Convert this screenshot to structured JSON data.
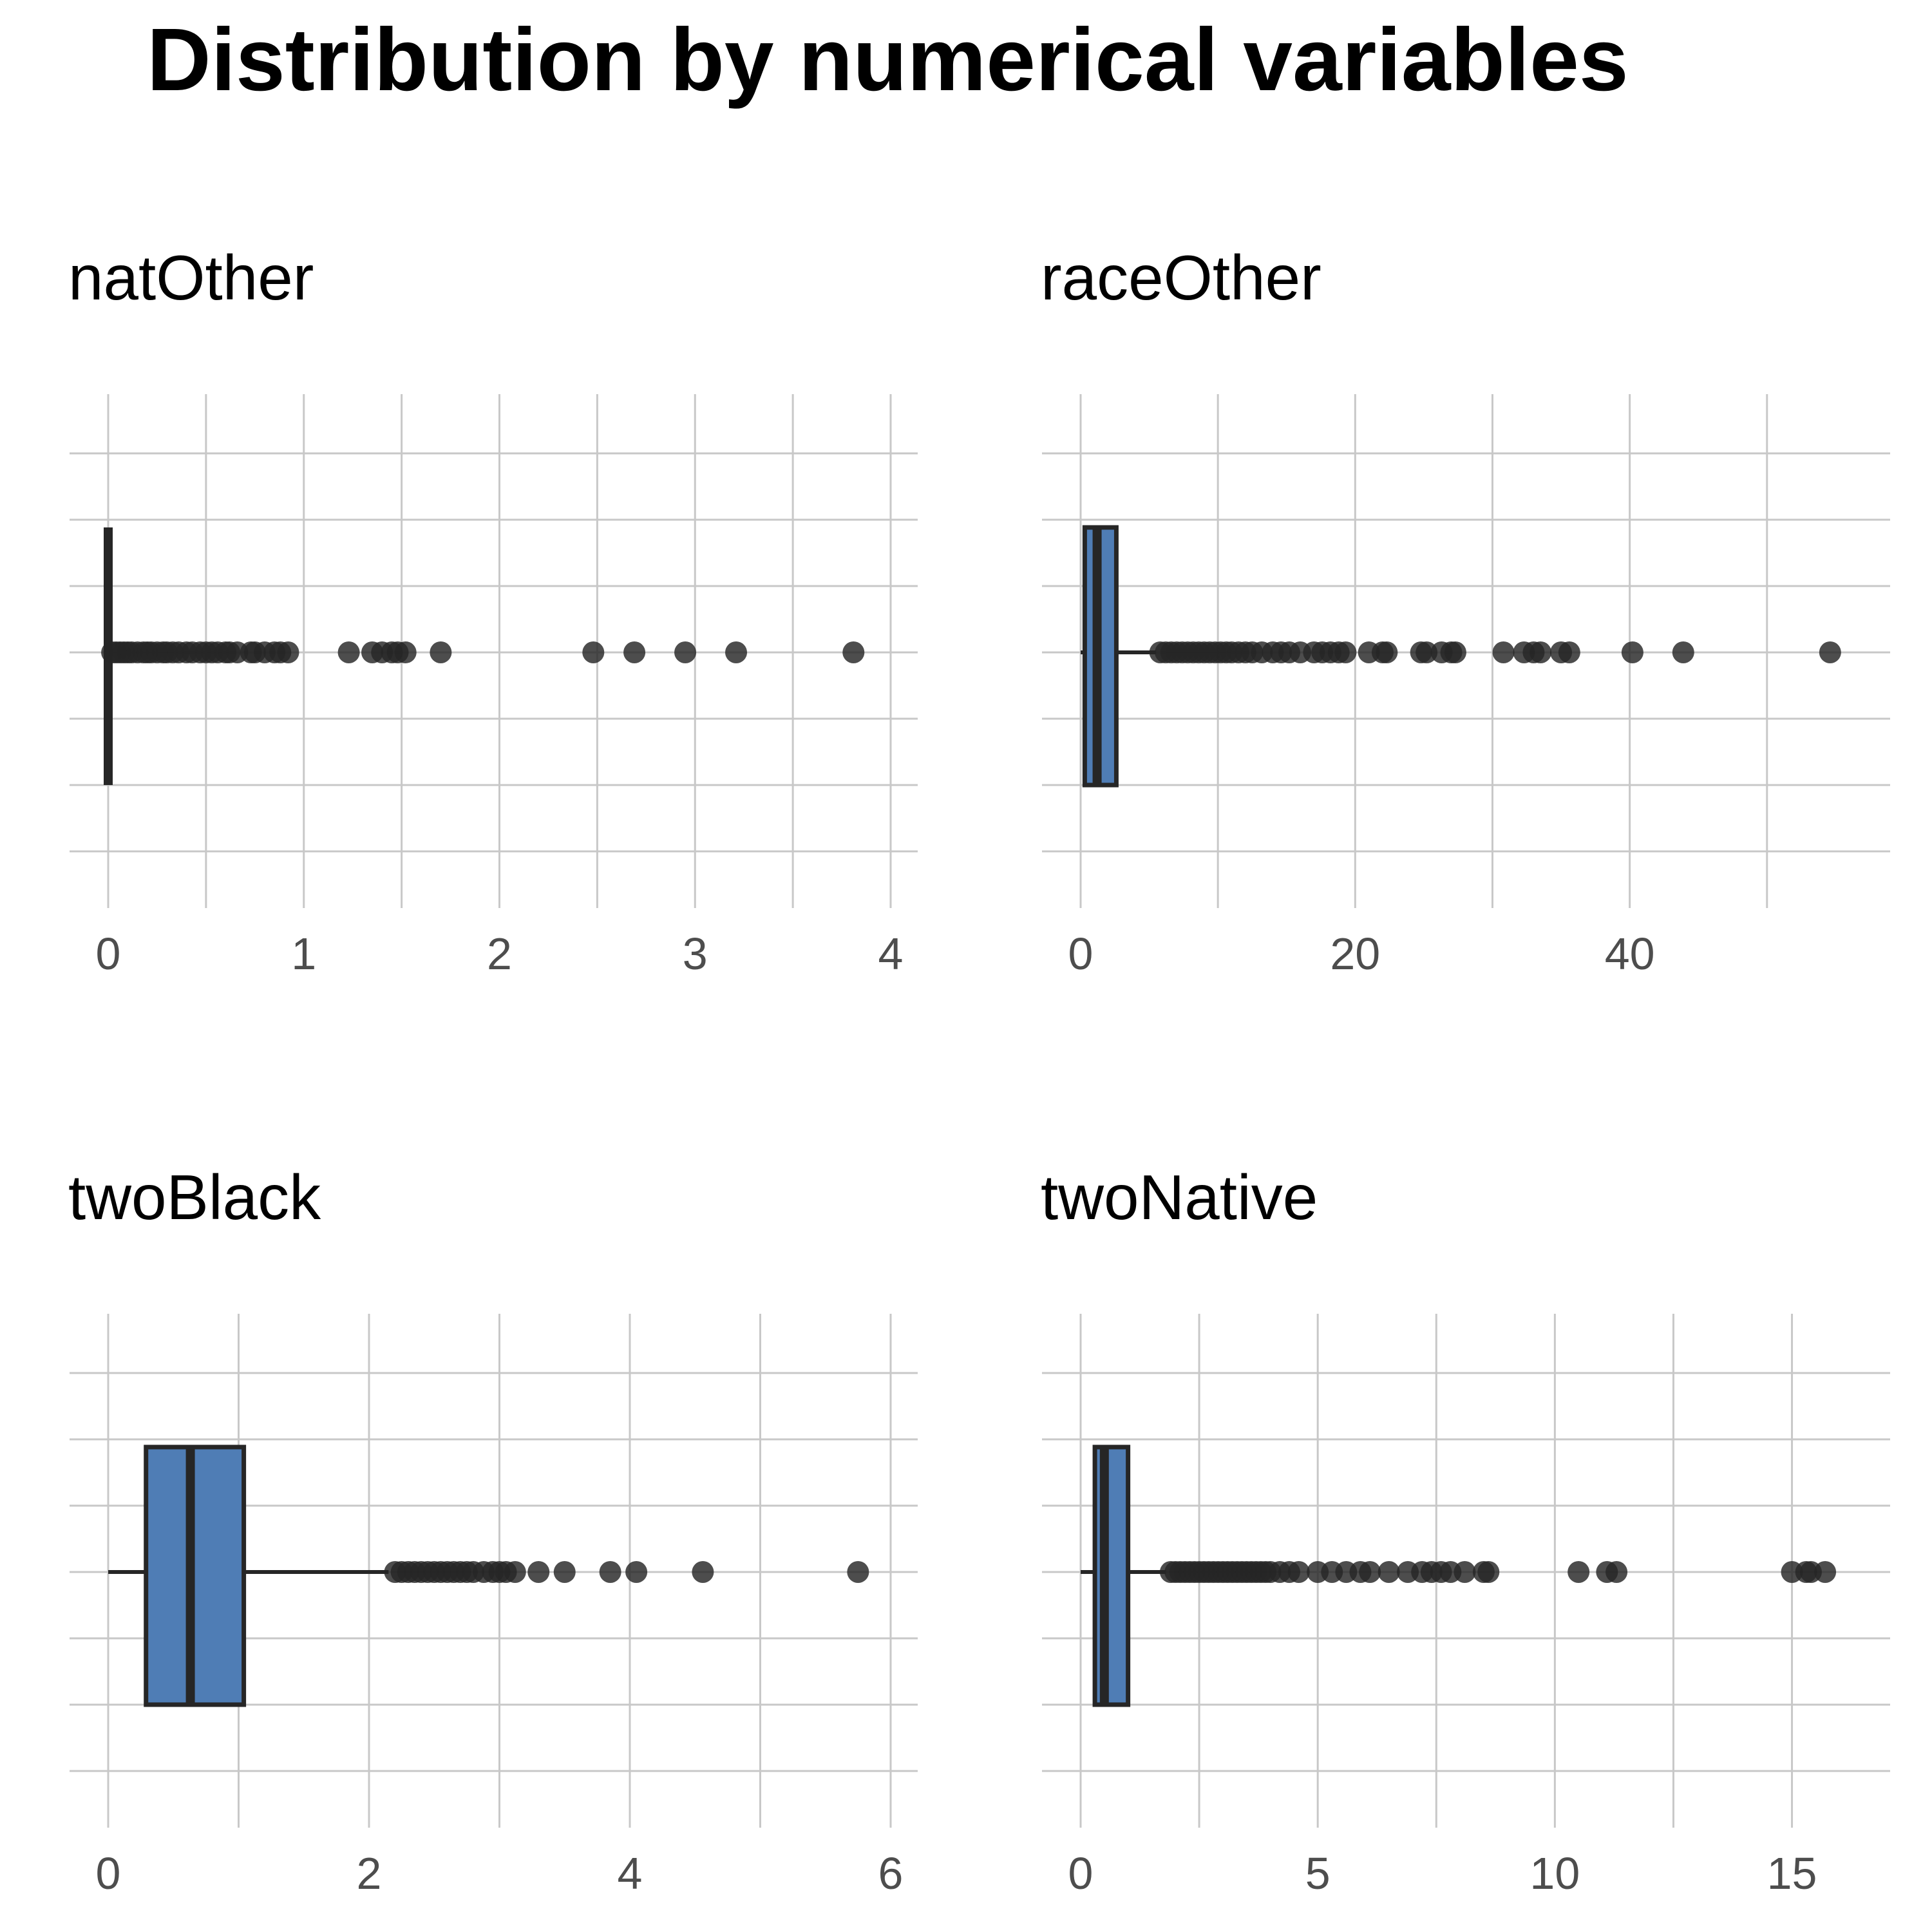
{
  "title": "Distribution by numerical variables",
  "colors": {
    "box_fill": "#4f7db5",
    "outline": "#262626",
    "grid": "#c8c8c8",
    "tick_text": "#4d4d4d"
  },
  "chart_data": [
    {
      "type": "boxplot",
      "title": "natOther",
      "xlim": [
        0,
        4
      ],
      "xticks": [
        0,
        1,
        2,
        3,
        4
      ],
      "tick_labels": [
        "0",
        "1",
        "2",
        "3",
        "4"
      ],
      "box": {
        "min": 0,
        "q1": 0,
        "median": 0,
        "q3": 0,
        "whisker_high": 0.01
      },
      "outliers": [
        0.02,
        0.04,
        0.06,
        0.08,
        0.1,
        0.12,
        0.15,
        0.18,
        0.2,
        0.22,
        0.25,
        0.28,
        0.3,
        0.33,
        0.36,
        0.4,
        0.43,
        0.47,
        0.5,
        0.53,
        0.56,
        0.6,
        0.62,
        0.66,
        0.73,
        0.75,
        0.8,
        0.85,
        0.88,
        0.92,
        1.23,
        1.35,
        1.4,
        1.45,
        1.48,
        1.52,
        1.7,
        2.48,
        2.69,
        2.95,
        3.21,
        3.81
      ]
    },
    {
      "type": "boxplot",
      "title": "raceOther",
      "xlim": [
        0,
        57
      ],
      "xticks": [
        0,
        20,
        40
      ],
      "tick_labels": [
        "0",
        "20",
        "40"
      ],
      "box": {
        "min": 0,
        "q1": 0.3,
        "median": 1.2,
        "q3": 2.6,
        "whisker_high": 5.5
      },
      "outliers": [
        5.8,
        6.2,
        6.6,
        7.0,
        7.4,
        7.8,
        8.2,
        8.6,
        9.0,
        9.4,
        9.8,
        10.2,
        10.6,
        11.0,
        11.5,
        12.0,
        12.5,
        13.2,
        14.0,
        14.6,
        15.2,
        16.0,
        17.0,
        17.6,
        18.2,
        18.8,
        19.3,
        21.0,
        22.0,
        22.3,
        24.8,
        25.2,
        26.3,
        27.0,
        27.3,
        30.8,
        32.3,
        33.0,
        33.5,
        35.0,
        35.6,
        40.2,
        43.9,
        54.6
      ]
    },
    {
      "type": "boxplot",
      "title": "twoBlack",
      "xlim": [
        0,
        6
      ],
      "xticks": [
        0,
        2,
        4,
        6
      ],
      "tick_labels": [
        "0",
        "2",
        "4",
        "6"
      ],
      "box": {
        "min": 0,
        "q1": 0.29,
        "median": 0.63,
        "q3": 1.04,
        "whisker_high": 2.15
      },
      "outliers": [
        2.2,
        2.25,
        2.3,
        2.35,
        2.4,
        2.45,
        2.5,
        2.55,
        2.6,
        2.65,
        2.7,
        2.75,
        2.8,
        2.88,
        2.95,
        3.0,
        3.05,
        3.12,
        3.3,
        3.5,
        3.85,
        4.05,
        4.56,
        5.75
      ]
    },
    {
      "type": "boxplot",
      "title": "twoNative",
      "xlim": [
        0,
        16.5
      ],
      "xticks": [
        0,
        5,
        10,
        15
      ],
      "tick_labels": [
        "0",
        "5",
        "10",
        "15"
      ],
      "box": {
        "min": 0,
        "q1": 0.3,
        "median": 0.5,
        "q3": 1.0,
        "whisker_high": 1.8
      },
      "outliers": [
        1.9,
        2.0,
        2.1,
        2.2,
        2.3,
        2.4,
        2.5,
        2.6,
        2.7,
        2.8,
        2.9,
        3.0,
        3.1,
        3.2,
        3.3,
        3.4,
        3.5,
        3.6,
        3.7,
        3.8,
        3.9,
        4.0,
        4.2,
        4.4,
        4.6,
        5.0,
        5.3,
        5.6,
        5.9,
        6.1,
        6.5,
        6.9,
        7.2,
        7.4,
        7.6,
        7.8,
        8.1,
        8.5,
        8.6,
        10.5,
        11.1,
        11.3,
        15.0,
        15.3,
        15.4,
        15.7
      ]
    }
  ]
}
